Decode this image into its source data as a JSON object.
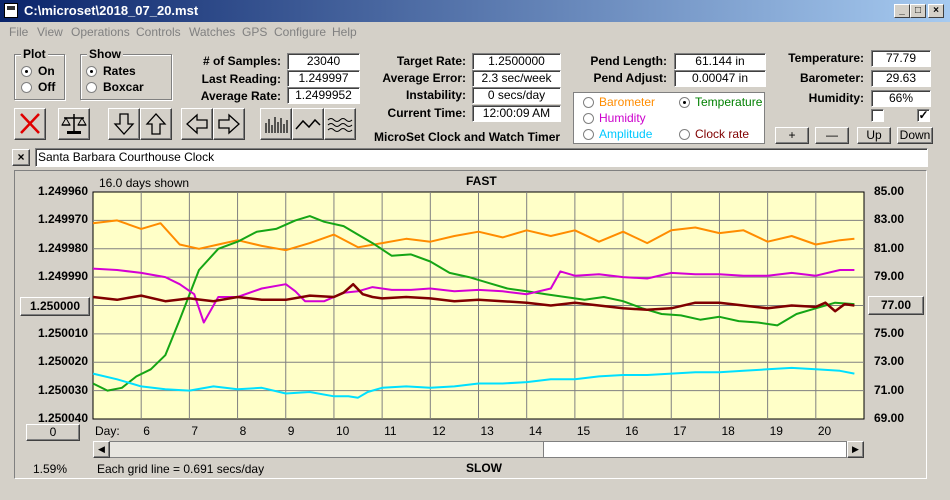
{
  "window": {
    "title": "C:\\microset\\2018_07_20.mst"
  },
  "menu": [
    "File",
    "View",
    "Operations",
    "Controls",
    "Watches",
    "GPS",
    "Configure",
    "Help"
  ],
  "plot_group": {
    "title": "Plot",
    "options": [
      "On",
      "Off"
    ],
    "selected": "On"
  },
  "show_group": {
    "title": "Show",
    "options": [
      "Rates",
      "Boxcar"
    ],
    "selected": "Rates"
  },
  "stats": {
    "samples_label": "# of Samples:",
    "samples": "23040",
    "last_label": "Last Reading:",
    "last": "1.249997",
    "avg_label": "Average Rate:",
    "avg": "1.2499952"
  },
  "target": {
    "target_label": "Target Rate:",
    "target": "1.2500000",
    "error_label": "Average Error:",
    "error": "2.3 sec/week",
    "instab_label": "Instability:",
    "instab": "0 secs/day",
    "time_label": "Current Time:",
    "time": "12:00:09 AM"
  },
  "pend": {
    "length_label": "Pend Length:",
    "length": "61.144 in",
    "adjust_label": "Pend Adjust:",
    "adjust": "0.00047 in"
  },
  "env": {
    "temp_label": "Temperature:",
    "temp": "77.79",
    "baro_label": "Barometer:",
    "baro": "29.63",
    "hum_label": "Humidity:",
    "hum": "66%"
  },
  "app_caption": "MicroSet Clock and Watch Timer",
  "series_select": {
    "options": [
      {
        "label": "Barometer",
        "color": "#ff8c00"
      },
      {
        "label": "Temperature",
        "color": "#008000"
      },
      {
        "label": "Humidity",
        "color": "#cc00cc"
      },
      {
        "label": "Clock rate",
        "color": "#800000"
      },
      {
        "label": "Amplitude",
        "color": "#00c8ff"
      }
    ],
    "selected": "Temperature"
  },
  "small_buttons": [
    "+",
    "—",
    "Up",
    "Down"
  ],
  "clock_name": "Santa Barbara Courthouse Clock",
  "graph": {
    "days_shown": "16.0 days shown",
    "fast": "FAST",
    "slow": "SLOW",
    "grid_note": "Each grid line = 0.691 secs/day",
    "percent": "1.59%",
    "left_btn": "0",
    "right_btn": "77.00",
    "day_label": "Day:"
  },
  "chart_data": {
    "type": "line",
    "x_range": [
      5,
      21
    ],
    "days": [
      "6",
      "7",
      "8",
      "9",
      "10",
      "11",
      "12",
      "13",
      "14",
      "15",
      "16",
      "17",
      "18",
      "19",
      "20"
    ],
    "left_axis_ticks": [
      "1.249960",
      "1.249970",
      "1.249980",
      "1.249990",
      "1.250000",
      "1.250010",
      "1.250020",
      "1.250030",
      "1.250040"
    ],
    "left_axis_highlight": "1.250000",
    "right_axis_ticks": [
      "85.00",
      "83.00",
      "81.00",
      "79.00",
      "77.00",
      "75.00",
      "73.00",
      "71.00",
      "69.00"
    ],
    "right_axis_highlight": "77.00",
    "y_range": [
      69,
      85
    ],
    "series": [
      {
        "name": "Barometer",
        "color": "#ff8c00",
        "x": [
          5,
          5.5,
          6,
          6.4,
          6.8,
          7.2,
          7.6,
          8,
          8.5,
          9,
          9.5,
          10,
          10.5,
          11,
          11.5,
          12,
          12.5,
          13,
          13.5,
          14,
          14.5,
          15,
          15.5,
          16,
          16.5,
          17,
          17.5,
          18,
          18.5,
          19,
          19.5,
          20,
          20.5,
          20.8
        ],
        "y": [
          82.8,
          83.0,
          82.4,
          82.8,
          81.3,
          81.0,
          81.3,
          81.6,
          81.2,
          80.9,
          81.4,
          82.0,
          81.1,
          81.4,
          81.7,
          81.5,
          81.9,
          82.2,
          81.8,
          82.3,
          81.9,
          82.3,
          81.5,
          82.2,
          81.4,
          82.3,
          82.5,
          82.1,
          82.3,
          81.5,
          81.9,
          81.3,
          81.6,
          81.7
        ]
      },
      {
        "name": "Temperature",
        "color": "#15a515",
        "x": [
          5,
          5.3,
          5.6,
          5.9,
          6.2,
          6.5,
          6.8,
          7.2,
          7.6,
          8,
          8.4,
          8.8,
          9.2,
          9.5,
          9.8,
          10.2,
          10.5,
          10.8,
          11.2,
          11.6,
          12,
          12.4,
          12.8,
          13.2,
          13.6,
          14,
          14.4,
          14.8,
          15.2,
          15.6,
          16,
          16.4,
          16.8,
          17.2,
          17.6,
          18,
          18.4,
          18.8,
          19.2,
          19.6,
          20,
          20.4,
          20.8
        ],
        "y": [
          71.5,
          71.0,
          71.2,
          72.0,
          72.5,
          73.5,
          76.0,
          79.5,
          81.0,
          81.5,
          82.2,
          82.4,
          83.0,
          83.3,
          82.9,
          82.6,
          82.0,
          81.4,
          80.5,
          80.6,
          80.1,
          79.3,
          79.0,
          78.6,
          78.2,
          78.0,
          77.8,
          77.6,
          77.4,
          77.6,
          77.3,
          76.8,
          76.4,
          76.3,
          76.0,
          76.2,
          75.9,
          75.8,
          75.6,
          76.4,
          76.8,
          77.2,
          77.1
        ]
      },
      {
        "name": "Humidity",
        "color": "#d400d4",
        "x": [
          5,
          5.5,
          6,
          6.5,
          6.8,
          7.1,
          7.3,
          7.6,
          8,
          8.5,
          9,
          9.2,
          9.4,
          9.8,
          10.2,
          10.5,
          10.8,
          11.2,
          11.6,
          12,
          12.5,
          13,
          13.5,
          14,
          14.5,
          14.7,
          15,
          15.5,
          16,
          16.5,
          17,
          17.5,
          18,
          18.5,
          19,
          19.5,
          20,
          20.5,
          20.8
        ],
        "y": [
          79.6,
          79.5,
          79.3,
          79.0,
          78.5,
          77.8,
          75.8,
          77.6,
          77.6,
          78.2,
          78.5,
          78.0,
          77.3,
          77.3,
          77.9,
          78.0,
          78.3,
          78.1,
          78.1,
          78.2,
          78.0,
          78.1,
          78.0,
          77.8,
          78.2,
          79.4,
          79.1,
          79.2,
          79.0,
          78.9,
          79.3,
          79.2,
          79.2,
          79.1,
          79.1,
          79.3,
          79.1,
          79.5,
          79.5
        ]
      },
      {
        "name": "Clock rate",
        "color": "#800000",
        "x": [
          5,
          5.5,
          6,
          6.5,
          7,
          7.5,
          8,
          8.5,
          9,
          9.5,
          10,
          10.2,
          10.4,
          10.6,
          10.8,
          11,
          11.5,
          12,
          12.5,
          13,
          13.5,
          14,
          14.5,
          15,
          15.5,
          16,
          16.5,
          17,
          17.5,
          18,
          18.5,
          19,
          19.5,
          20,
          20.2,
          20.4,
          20.6,
          20.8
        ],
        "y": [
          77.6,
          77.4,
          77.7,
          77.3,
          77.5,
          77.3,
          77.6,
          77.4,
          77.4,
          77.7,
          77.6,
          77.9,
          78.5,
          77.8,
          77.6,
          77.5,
          77.6,
          77.5,
          77.3,
          77.4,
          77.3,
          77.2,
          77.0,
          77.2,
          77.0,
          76.8,
          76.7,
          76.8,
          77.2,
          77.2,
          77.0,
          76.8,
          77.0,
          76.9,
          77.2,
          76.6,
          77.1,
          77.0
        ]
      },
      {
        "name": "Amplitude",
        "color": "#00e0ff",
        "x": [
          5,
          5.5,
          6,
          6.5,
          7,
          7.5,
          8,
          8.5,
          9,
          9.5,
          10,
          10.3,
          10.5,
          10.7,
          11,
          11.5,
          12,
          12.5,
          13,
          13.5,
          14,
          14.5,
          15,
          15.5,
          16,
          16.5,
          17,
          17.5,
          18,
          18.5,
          19,
          19.5,
          20,
          20.5,
          20.8
        ],
        "y": [
          72.2,
          71.8,
          71.3,
          71.1,
          71.0,
          71.3,
          71.1,
          71.2,
          70.8,
          70.9,
          70.6,
          70.6,
          70.5,
          70.9,
          71.2,
          71.3,
          71.2,
          71.3,
          71.5,
          71.5,
          71.6,
          71.8,
          71.8,
          72.0,
          72.1,
          72.1,
          72.2,
          72.3,
          72.3,
          72.4,
          72.5,
          72.6,
          72.5,
          72.4,
          72.2
        ]
      }
    ]
  }
}
